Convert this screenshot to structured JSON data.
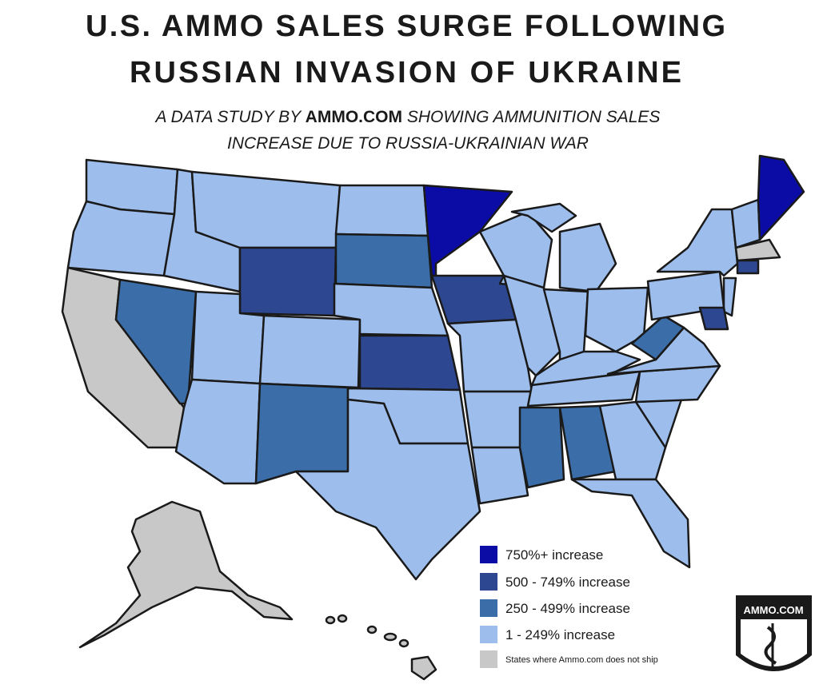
{
  "header": {
    "title": [
      "U.S. AMMO SALES SURGE FOLLOWING",
      "RUSSIAN INVASION OF UKRAINE"
    ],
    "subtitle": {
      "line1": [
        "A DATA STUDY BY",
        "AMMO.COM",
        "SHOWING AMMUNITION SALES"
      ],
      "line2": "INCREASE DUE TO RUSSIA-UKRAINIAN WAR"
    }
  },
  "legend": {
    "items": [
      {
        "label": "750%+ increase",
        "color": "#0b0ca6"
      },
      {
        "label": "500 - 749% increase",
        "color": "#2d4791"
      },
      {
        "label": "250 - 499% increase",
        "color": "#3b6ea9"
      },
      {
        "label": "1 - 249% increase",
        "color": "#9dbdec"
      },
      {
        "label": "States where Ammo.com does not ship",
        "color": "#c8c8c8"
      }
    ]
  },
  "logo": {
    "text": "AMMO.COM"
  }
}
